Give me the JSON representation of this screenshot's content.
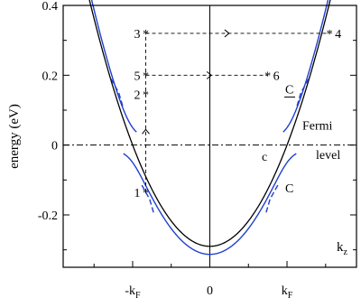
{
  "chart_data": {
    "type": "line",
    "title": "",
    "xlabel": "k",
    "xlabel_sub": "z",
    "ylabel": "energy (eV)",
    "xlim": [
      -1.9,
      1.9
    ],
    "ylim": [
      -0.35,
      0.4
    ],
    "kF": 1.0,
    "x_ticks": [
      {
        "value": -1.0,
        "label": "-k",
        "sub": "F"
      },
      {
        "value": 0.0,
        "label": "0",
        "sub": ""
      },
      {
        "value": 1.0,
        "label": "k",
        "sub": "F"
      }
    ],
    "y_ticks": [
      {
        "value": 0.4,
        "label": "0.4"
      },
      {
        "value": 0.2,
        "label": "0.2"
      },
      {
        "value": 0.0,
        "label": "0"
      },
      {
        "value": -0.2,
        "label": "-0.2"
      }
    ],
    "colors": {
      "bare": "#000000",
      "hybrid": "#1f3fd0",
      "guide": "#000000"
    },
    "series": [
      {
        "kind": "parabola",
        "color": "#000000",
        "E0": -0.29,
        "x_range": [
          -1.78,
          1.78
        ]
      },
      {
        "kind": "hybrid-lower",
        "color": "#1f3fd0",
        "E0": -0.305,
        "gap": 0.1,
        "x_range": [
          -1.78,
          1.78
        ]
      },
      {
        "kind": "hybrid-upper",
        "color": "#1f3fd0",
        "E0": -0.305,
        "gap": 0.1,
        "x_range": [
          -1.78,
          1.78
        ]
      },
      {
        "kind": "dashed-upper",
        "color": "#1f3fd0",
        "points": [
          [
            -1.28,
            0.19
          ],
          [
            -1.18,
            0.15
          ],
          [
            -1.12,
            0.105
          ]
        ],
        "mirror": true
      },
      {
        "kind": "dashed-lower",
        "color": "#1f3fd0",
        "points": [
          [
            -0.88,
            -0.115
          ],
          [
            -0.78,
            -0.155
          ],
          [
            -0.72,
            -0.2
          ]
        ],
        "mirror": true
      }
    ],
    "fermi_level": 0.0,
    "markers": [
      {
        "label": "1",
        "x": -0.83,
        "y": -0.135
      },
      {
        "label": "2",
        "x": -0.83,
        "y": 0.145
      },
      {
        "label": "3",
        "x": -0.83,
        "y": 0.32
      },
      {
        "label": "4",
        "x": 1.55,
        "y": 0.32
      },
      {
        "label": "5",
        "x": -0.83,
        "y": 0.2
      },
      {
        "label": "6",
        "x": 0.75,
        "y": 0.2
      }
    ],
    "annotations": {
      "fermi_line1": "Fermi",
      "fermi_line2": "level",
      "c_label": "c",
      "C_lower": "C",
      "C_upper": "C"
    }
  }
}
